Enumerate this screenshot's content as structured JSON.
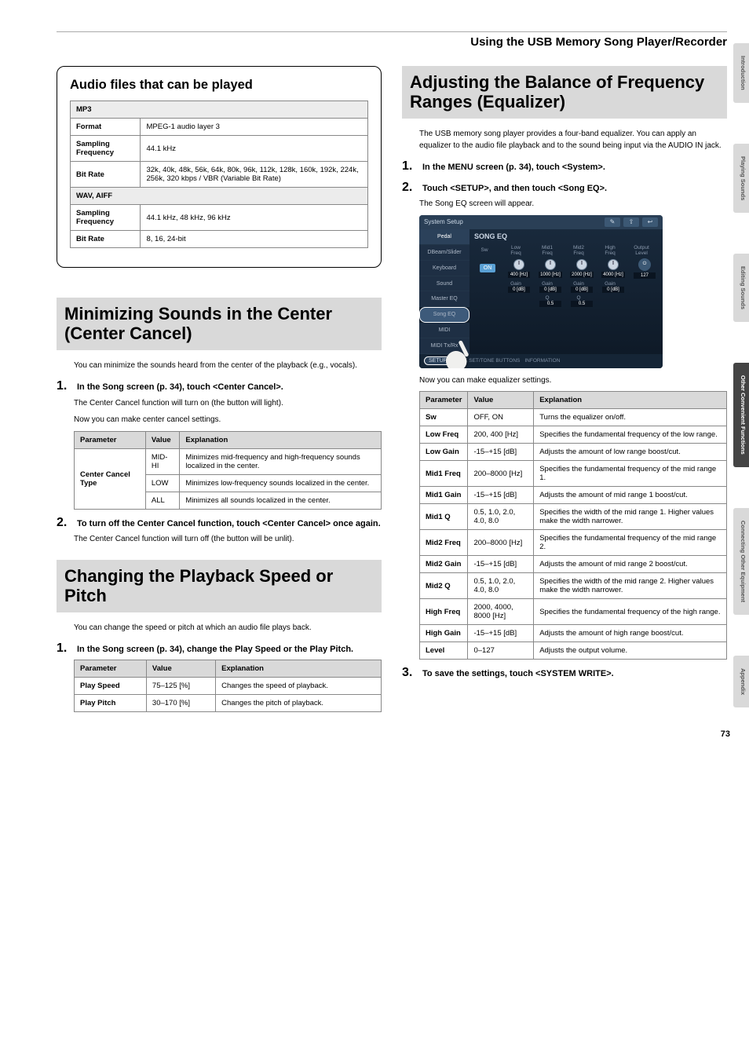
{
  "header": {
    "title": "Using the USB Memory Song Player/Recorder"
  },
  "audio_files": {
    "heading": "Audio files that can be played",
    "mp3_label": "MP3",
    "wav_label": "WAV, AIFF",
    "rows_mp3": {
      "format_l": "Format",
      "format_v": "MPEG-1 audio layer 3",
      "sf_l": "Sampling Frequency",
      "sf_v": "44.1 kHz",
      "br_l": "Bit Rate",
      "br_v": "32k, 40k, 48k, 56k, 64k, 80k, 96k, 112k, 128k, 160k, 192k, 224k, 256k, 320 kbps / VBR (Variable Bit Rate)"
    },
    "rows_wav": {
      "sf_l": "Sampling Frequency",
      "sf_v": "44.1 kHz, 48 kHz, 96 kHz",
      "br_l": "Bit Rate",
      "br_v": "8, 16, 24-bit"
    }
  },
  "center_cancel": {
    "heading": "Minimizing Sounds in the Center (Center Cancel)",
    "intro": "You can minimize the sounds heard from the center of the playback (e.g., vocals).",
    "step1": "In the Song screen (p. 34), touch <Center Cancel>.",
    "step1_sub1": "The Center Cancel function will turn on (the button will light).",
    "step1_sub2": "Now you can make center cancel settings.",
    "table": {
      "h1": "Parameter",
      "h2": "Value",
      "h3": "Explanation",
      "param": "Center Cancel Type",
      "r1v": "MID-HI",
      "r1e": "Minimizes mid-frequency and high-frequency sounds localized in the center.",
      "r2v": "LOW",
      "r2e": "Minimizes low-frequency sounds localized in the center.",
      "r3v": "ALL",
      "r3e": "Minimizes all sounds localized in the center."
    },
    "step2": "To turn off the Center Cancel function, touch <Center Cancel> once again.",
    "step2_sub": "The Center Cancel function will turn off (the button will be unlit)."
  },
  "speed_pitch": {
    "heading": "Changing the Playback Speed or Pitch",
    "intro": "You can change the speed or pitch at which an audio file plays back.",
    "step1": "In the Song screen (p. 34), change the Play Speed or the Play Pitch.",
    "table": {
      "h1": "Parameter",
      "h2": "Value",
      "h3": "Explanation",
      "r1p": "Play Speed",
      "r1v": "75–125 [%]",
      "r1e": "Changes the speed of playback.",
      "r2p": "Play Pitch",
      "r2v": "30–170 [%]",
      "r2e": "Changes the pitch of playback."
    }
  },
  "eq": {
    "heading": "Adjusting the Balance of Frequency Ranges (Equalizer)",
    "intro": "The USB memory song player provides a four-band equalizer. You can apply an equalizer to the audio file playback and to the sound being input via the AUDIO IN jack.",
    "step1": "In the MENU screen (p. 34), touch <System>.",
    "step2": "Touch <SETUP>, and then touch <Song EQ>.",
    "step2_sub": "The Song EQ screen will appear.",
    "after_shot": "Now you can make equalizer settings.",
    "table": {
      "h1": "Parameter",
      "h2": "Value",
      "h3": "Explanation",
      "rows": [
        {
          "p": "Sw",
          "v": "OFF, ON",
          "e": "Turns the equalizer on/off."
        },
        {
          "p": "Low Freq",
          "v": "200, 400 [Hz]",
          "e": "Specifies the fundamental frequency of the low range."
        },
        {
          "p": "Low Gain",
          "v": "-15–+15 [dB]",
          "e": "Adjusts the amount of low range boost/cut."
        },
        {
          "p": "Mid1 Freq",
          "v": "200–8000 [Hz]",
          "e": "Specifies the fundamental frequency of the mid range 1."
        },
        {
          "p": "Mid1 Gain",
          "v": "-15–+15 [dB]",
          "e": "Adjusts the amount of mid range 1 boost/cut."
        },
        {
          "p": "Mid1 Q",
          "v": "0.5, 1.0, 2.0, 4.0, 8.0",
          "e": "Specifies the width of the mid range 1. Higher values make the width narrower."
        },
        {
          "p": "Mid2 Freq",
          "v": "200–8000 [Hz]",
          "e": "Specifies the fundamental frequency of the mid range 2."
        },
        {
          "p": "Mid2 Gain",
          "v": "-15–+15 [dB]",
          "e": "Adjusts the amount of mid range 2 boost/cut."
        },
        {
          "p": "Mid2 Q",
          "v": "0.5, 1.0, 2.0, 4.0, 8.0",
          "e": "Specifies the width of the mid range 2. Higher values make the width narrower."
        },
        {
          "p": "High Freq",
          "v": "2000, 4000, 8000 [Hz]",
          "e": "Specifies the fundamental frequency of the high range."
        },
        {
          "p": "High Gain",
          "v": "-15–+15 [dB]",
          "e": "Adjusts the amount of high range boost/cut."
        },
        {
          "p": "Level",
          "v": "0–127",
          "e": "Adjusts the output volume."
        }
      ]
    },
    "step3": "To save the settings, touch <SYSTEM WRITE>."
  },
  "screenshot": {
    "title": "System Setup",
    "side": [
      "Pedal",
      "DBeam/Slider",
      "Keyboard",
      "Sound",
      "Master EQ",
      "Song EQ",
      "MIDI",
      "MIDI Tx/Rx"
    ],
    "panel_title": "SONG EQ",
    "cols": [
      "Sw",
      "Low",
      "Mid1",
      "Mid2",
      "High",
      "Output"
    ],
    "sub": [
      "",
      "Freq",
      "Freq",
      "Freq",
      "Freq",
      "Level"
    ],
    "on": "ON",
    "vals1": [
      "400 [Hz]",
      "1000 [Hz]",
      "2000 [Hz]",
      "4000 [Hz]",
      "127"
    ],
    "gain_l": "Gain",
    "q_l": "Q",
    "gains": [
      "0 [dB]",
      "0 [dB]",
      "0 [dB]",
      "0 [dB]"
    ],
    "qs": [
      "0.5",
      "0.5"
    ],
    "bottom_setup": "SETUP",
    "bottom_live": "LIVE SET/TONE BUTTONS",
    "bottom_info": "INFORMATION"
  },
  "tabs": {
    "t1": "Introduction",
    "t2": "Playing Sounds",
    "t3": "Editing Sounds",
    "t4": "Other Convenient Functions",
    "t5": "Connecting Other Equipment",
    "t6": "Appendix"
  },
  "page": "73"
}
